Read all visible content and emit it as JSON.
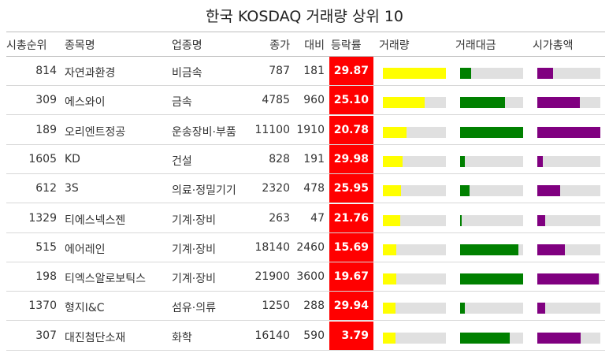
{
  "chart_data": {
    "type": "table",
    "title": "한국 KOSDAQ 거래량 상위 10",
    "columns": [
      "시총순위",
      "종목명",
      "업종명",
      "종가",
      "대비",
      "등락률",
      "거래량",
      "거래대금",
      "시가총액"
    ],
    "bar_colors": {
      "거래량": "#ffff00",
      "거래대금": "#008000",
      "시가총액": "#800080",
      "등락률_bg": "#ff0000"
    },
    "rows": [
      {
        "rank": "814",
        "name": "자연과환경",
        "sector": "비금속",
        "close": "787",
        "diff": "181",
        "change": "29.87",
        "volume_frac": 1.0,
        "value_frac": 0.18,
        "mcap_frac": 0.25
      },
      {
        "rank": "309",
        "name": "에스와이",
        "sector": "금속",
        "close": "4785",
        "diff": "960",
        "change": "25.10",
        "volume_frac": 0.66,
        "value_frac": 0.71,
        "mcap_frac": 0.68
      },
      {
        "rank": "189",
        "name": "오리엔트정공",
        "sector": "운송장비·부품",
        "close": "11100",
        "diff": "1910",
        "change": "20.78",
        "volume_frac": 0.38,
        "value_frac": 1.0,
        "mcap_frac": 1.0
      },
      {
        "rank": "1605",
        "name": "KD",
        "sector": "건설",
        "close": "828",
        "diff": "191",
        "change": "29.98",
        "volume_frac": 0.31,
        "value_frac": 0.07,
        "mcap_frac": 0.09
      },
      {
        "rank": "612",
        "name": "3S",
        "sector": "의료·정밀기기",
        "close": "2320",
        "diff": "478",
        "change": "25.95",
        "volume_frac": 0.29,
        "value_frac": 0.15,
        "mcap_frac": 0.36
      },
      {
        "rank": "1329",
        "name": "티에스넥스젠",
        "sector": "기계·장비",
        "close": "263",
        "diff": "47",
        "change": "21.76",
        "volume_frac": 0.28,
        "value_frac": 0.02,
        "mcap_frac": 0.12
      },
      {
        "rank": "515",
        "name": "에어레인",
        "sector": "기계·장비",
        "close": "18140",
        "diff": "2460",
        "change": "15.69",
        "volume_frac": 0.21,
        "value_frac": 0.92,
        "mcap_frac": 0.44
      },
      {
        "rank": "198",
        "name": "티엑스알로보틱스",
        "sector": "기계·장비",
        "close": "21900",
        "diff": "3600",
        "change": "19.67",
        "volume_frac": 0.21,
        "value_frac": 1.0,
        "mcap_frac": 0.97
      },
      {
        "rank": "1370",
        "name": "형지I&C",
        "sector": "섬유·의류",
        "close": "1250",
        "diff": "288",
        "change": "29.94",
        "volume_frac": 0.2,
        "value_frac": 0.07,
        "mcap_frac": 0.12
      },
      {
        "rank": "307",
        "name": "대진첨단소재",
        "sector": "화학",
        "close": "16140",
        "diff": "590",
        "change": "3.79",
        "volume_frac": 0.2,
        "value_frac": 0.79,
        "mcap_frac": 0.69
      }
    ]
  }
}
